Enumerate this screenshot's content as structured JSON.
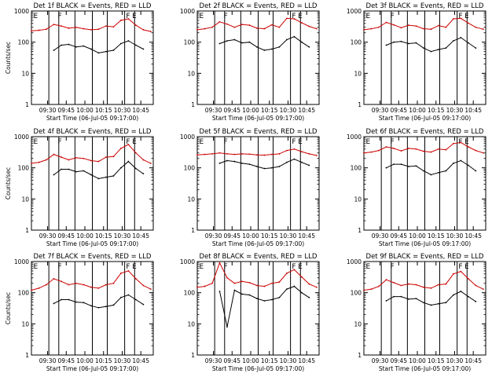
{
  "colors": {
    "events": "#000000",
    "lld": "#cc0000",
    "axes": "#000000"
  },
  "chart_data": [
    {
      "type": "line",
      "title": "Det 1f BLACK = Events, RED = LLD",
      "xlabel": "Start Time (06-Jul-05 09:17:00)",
      "ylabel": "Counts/sec",
      "xticks": [
        "09:30",
        "09:45",
        "10:00",
        "10:15",
        "10:30",
        "10:45"
      ],
      "yticks": [
        "1",
        "10",
        "100",
        "1000"
      ],
      "yscale": "log",
      "ylim": [
        1,
        1000
      ],
      "x": [
        "09:17",
        "09:23",
        "09:29",
        "09:35",
        "09:41",
        "09:47",
        "09:53",
        "09:59",
        "10:05",
        "10:11",
        "10:17",
        "10:23",
        "10:29",
        "10:35",
        "10:41",
        "10:47",
        "10:53"
      ],
      "series": [
        {
          "color": "red",
          "values": [
            230,
            240,
            260,
            370,
            330,
            280,
            300,
            270,
            250,
            260,
            330,
            310,
            500,
            560,
            350,
            250,
            220
          ]
        },
        {
          "color": "black",
          "values": [
            null,
            null,
            null,
            55,
            80,
            85,
            70,
            75,
            60,
            45,
            50,
            55,
            90,
            110,
            80,
            60,
            null
          ]
        }
      ],
      "annotations": [
        "E",
        "F",
        "F",
        "E"
      ]
    },
    {
      "type": "line",
      "title": "Det 2f BLACK = Events, RED = LLD",
      "xlabel": "Start Time (06-Jul-05 09:17:00)",
      "ylabel": "",
      "xticks": [
        "09:30",
        "09:45",
        "10:00",
        "10:15",
        "10:30",
        "10:45"
      ],
      "yticks": [
        "1",
        "10",
        "100",
        "1000"
      ],
      "yscale": "log",
      "ylim": [
        1,
        1000
      ],
      "x": [
        "09:17",
        "09:23",
        "09:29",
        "09:35",
        "09:41",
        "09:47",
        "09:53",
        "09:59",
        "10:05",
        "10:11",
        "10:17",
        "10:23",
        "10:29",
        "10:35",
        "10:41",
        "10:47",
        "10:53"
      ],
      "series": [
        {
          "color": "red",
          "values": [
            250,
            270,
            300,
            450,
            380,
            300,
            370,
            350,
            280,
            270,
            360,
            300,
            580,
            560,
            420,
            320,
            270
          ]
        },
        {
          "color": "black",
          "values": [
            null,
            null,
            null,
            90,
            110,
            120,
            95,
            100,
            70,
            55,
            60,
            70,
            120,
            150,
            100,
            70,
            null
          ]
        }
      ],
      "annotations": [
        "E",
        "F",
        "F",
        "E"
      ]
    },
    {
      "type": "line",
      "title": "Det 3f BLACK = Events, RED = LLD",
      "xlabel": "Start Time (06-Jul-05 09:17:00)",
      "ylabel": "",
      "xticks": [
        "09:30",
        "09:45",
        "10:00",
        "10:15",
        "10:30",
        "10:45"
      ],
      "yticks": [
        "1",
        "10",
        "100",
        "1000"
      ],
      "yscale": "log",
      "ylim": [
        1,
        1000
      ],
      "x": [
        "09:17",
        "09:23",
        "09:29",
        "09:35",
        "09:41",
        "09:47",
        "09:53",
        "09:59",
        "10:05",
        "10:11",
        "10:17",
        "10:23",
        "10:29",
        "10:35",
        "10:41",
        "10:47",
        "10:53"
      ],
      "series": [
        {
          "color": "red",
          "values": [
            250,
            270,
            300,
            430,
            360,
            290,
            350,
            330,
            270,
            260,
            340,
            300,
            560,
            580,
            410,
            300,
            260
          ]
        },
        {
          "color": "black",
          "values": [
            null,
            null,
            null,
            80,
            100,
            105,
            90,
            95,
            65,
            50,
            58,
            65,
            110,
            140,
            95,
            65,
            null
          ]
        }
      ],
      "annotations": [
        "E",
        "F",
        "F",
        "E"
      ]
    },
    {
      "type": "line",
      "title": "Det 4f BLACK = Events, RED = LLD",
      "xlabel": "Start Time (06-Jul-05 09:17:00)",
      "ylabel": "Counts/sec",
      "xticks": [
        "09:30",
        "09:45",
        "10:00",
        "10:15",
        "10:30",
        "10:45"
      ],
      "yticks": [
        "1",
        "10",
        "100",
        "1000"
      ],
      "yscale": "log",
      "ylim": [
        1,
        1000
      ],
      "x": [
        "09:17",
        "09:23",
        "09:29",
        "09:35",
        "09:41",
        "09:47",
        "09:53",
        "09:59",
        "10:05",
        "10:11",
        "10:17",
        "10:23",
        "10:29",
        "10:35",
        "10:41",
        "10:47",
        "10:53"
      ],
      "series": [
        {
          "color": "red",
          "values": [
            140,
            150,
            180,
            270,
            220,
            180,
            210,
            200,
            170,
            160,
            220,
            230,
            420,
            560,
            300,
            180,
            140
          ]
        },
        {
          "color": "black",
          "values": [
            null,
            null,
            null,
            60,
            90,
            90,
            75,
            80,
            60,
            45,
            50,
            55,
            100,
            160,
            95,
            65,
            null
          ]
        }
      ],
      "annotations": [
        "E",
        "F",
        "F",
        "E"
      ]
    },
    {
      "type": "line",
      "title": "Det 5f BLACK = Events, RED = LLD",
      "xlabel": "Start Time (06-Jul-05 09:17:00)",
      "ylabel": "",
      "xticks": [
        "09:30",
        "09:45",
        "10:00",
        "10:15",
        "10:30",
        "10:45"
      ],
      "yticks": [
        "1",
        "10",
        "100",
        "1000"
      ],
      "yscale": "log",
      "ylim": [
        1,
        1000
      ],
      "x": [
        "09:17",
        "09:23",
        "09:29",
        "09:35",
        "09:41",
        "09:47",
        "09:53",
        "09:59",
        "10:05",
        "10:11",
        "10:17",
        "10:23",
        "10:29",
        "10:35",
        "10:41",
        "10:47",
        "10:53"
      ],
      "series": [
        {
          "color": "red",
          "values": [
            260,
            270,
            280,
            300,
            280,
            270,
            280,
            275,
            260,
            255,
            270,
            280,
            360,
            400,
            330,
            280,
            250
          ]
        },
        {
          "color": "black",
          "values": [
            null,
            null,
            null,
            140,
            170,
            160,
            140,
            130,
            110,
            95,
            100,
            110,
            150,
            190,
            150,
            120,
            null
          ]
        }
      ],
      "annotations": [
        "E",
        "F",
        "F",
        "E"
      ]
    },
    {
      "type": "line",
      "title": "Det 6f BLACK = Events, RED = LLD",
      "xlabel": "Start Time (06-Jul-05 09:17:00)",
      "ylabel": "",
      "xticks": [
        "09:30",
        "09:45",
        "10:00",
        "10:15",
        "10:30",
        "10:45"
      ],
      "yticks": [
        "1",
        "10",
        "100",
        "1000"
      ],
      "yscale": "log",
      "ylim": [
        1,
        1000
      ],
      "x": [
        "09:17",
        "09:23",
        "09:29",
        "09:35",
        "09:41",
        "09:47",
        "09:53",
        "09:59",
        "10:05",
        "10:11",
        "10:17",
        "10:23",
        "10:29",
        "10:35",
        "10:41",
        "10:47",
        "10:53"
      ],
      "series": [
        {
          "color": "red",
          "values": [
            300,
            320,
            360,
            470,
            420,
            350,
            420,
            400,
            340,
            320,
            400,
            380,
            600,
            650,
            470,
            360,
            300
          ]
        },
        {
          "color": "black",
          "values": [
            null,
            null,
            null,
            100,
            130,
            130,
            110,
            115,
            80,
            60,
            70,
            80,
            140,
            170,
            120,
            80,
            null
          ]
        }
      ],
      "annotations": [
        "E",
        "F",
        "F",
        "E"
      ]
    },
    {
      "type": "line",
      "title": "Det 7f BLACK = Events, RED = LLD",
      "xlabel": "Start Time (06-Jul-05 09:17:00)",
      "ylabel": "Counts/sec",
      "xticks": [
        "09:30",
        "09:45",
        "10:00",
        "10:15",
        "10:30",
        "10:45"
      ],
      "yticks": [
        "1",
        "10",
        "100",
        "1000"
      ],
      "yscale": "log",
      "ylim": [
        1,
        1000
      ],
      "x": [
        "09:17",
        "09:23",
        "09:29",
        "09:35",
        "09:41",
        "09:47",
        "09:53",
        "09:59",
        "10:05",
        "10:11",
        "10:17",
        "10:23",
        "10:29",
        "10:35",
        "10:41",
        "10:47",
        "10:53"
      ],
      "series": [
        {
          "color": "red",
          "values": [
            120,
            140,
            180,
            280,
            230,
            180,
            200,
            180,
            150,
            140,
            180,
            200,
            420,
            500,
            280,
            170,
            130
          ]
        },
        {
          "color": "black",
          "values": [
            null,
            null,
            null,
            45,
            60,
            60,
            50,
            48,
            38,
            33,
            36,
            40,
            70,
            85,
            60,
            42,
            null
          ]
        }
      ],
      "annotations": [
        "E",
        "F",
        "F",
        "E"
      ]
    },
    {
      "type": "line",
      "title": "Det 8f BLACK = Events, RED = LLD",
      "xlabel": "Start Time (06-Jul-05 09:17:00)",
      "ylabel": "",
      "xticks": [
        "09:30",
        "09:45",
        "10:00",
        "10:15",
        "10:30",
        "10:45"
      ],
      "yticks": [
        "1",
        "10",
        "100",
        "1000"
      ],
      "yscale": "log",
      "ylim": [
        1,
        1000
      ],
      "x": [
        "09:17",
        "09:23",
        "09:29",
        "09:35",
        "09:41",
        "09:47",
        "09:53",
        "09:59",
        "10:05",
        "10:11",
        "10:17",
        "10:23",
        "10:29",
        "10:35",
        "10:41",
        "10:47",
        "10:53"
      ],
      "series": [
        {
          "color": "red",
          "values": [
            150,
            160,
            200,
            900,
            300,
            200,
            230,
            210,
            170,
            160,
            200,
            220,
            420,
            550,
            320,
            190,
            150
          ]
        },
        {
          "color": "black",
          "values": [
            null,
            null,
            null,
            110,
            8,
            120,
            90,
            85,
            65,
            55,
            60,
            70,
            130,
            160,
            100,
            70,
            null
          ]
        }
      ],
      "annotations": [
        "E",
        "F",
        "F",
        "E"
      ]
    },
    {
      "type": "line",
      "title": "Det 9f BLACK = Events, RED = LLD",
      "xlabel": "Start Time (06-Jul-05 09:17:00)",
      "ylabel": "",
      "xticks": [
        "09:30",
        "09:45",
        "10:00",
        "10:15",
        "10:30",
        "10:45"
      ],
      "yticks": [
        "1",
        "10",
        "100",
        "1000"
      ],
      "yscale": "log",
      "ylim": [
        1,
        1000
      ],
      "x": [
        "09:17",
        "09:23",
        "09:29",
        "09:35",
        "09:41",
        "09:47",
        "09:53",
        "09:59",
        "10:05",
        "10:11",
        "10:17",
        "10:23",
        "10:29",
        "10:35",
        "10:41",
        "10:47",
        "10:53"
      ],
      "series": [
        {
          "color": "red",
          "values": [
            120,
            130,
            160,
            260,
            210,
            170,
            190,
            180,
            150,
            140,
            180,
            190,
            400,
            480,
            280,
            170,
            130
          ]
        },
        {
          "color": "black",
          "values": [
            null,
            null,
            null,
            55,
            75,
            75,
            62,
            65,
            48,
            40,
            44,
            48,
            85,
            110,
            75,
            52,
            null
          ]
        }
      ],
      "annotations": [
        "E",
        "F",
        "F",
        "E"
      ]
    }
  ]
}
